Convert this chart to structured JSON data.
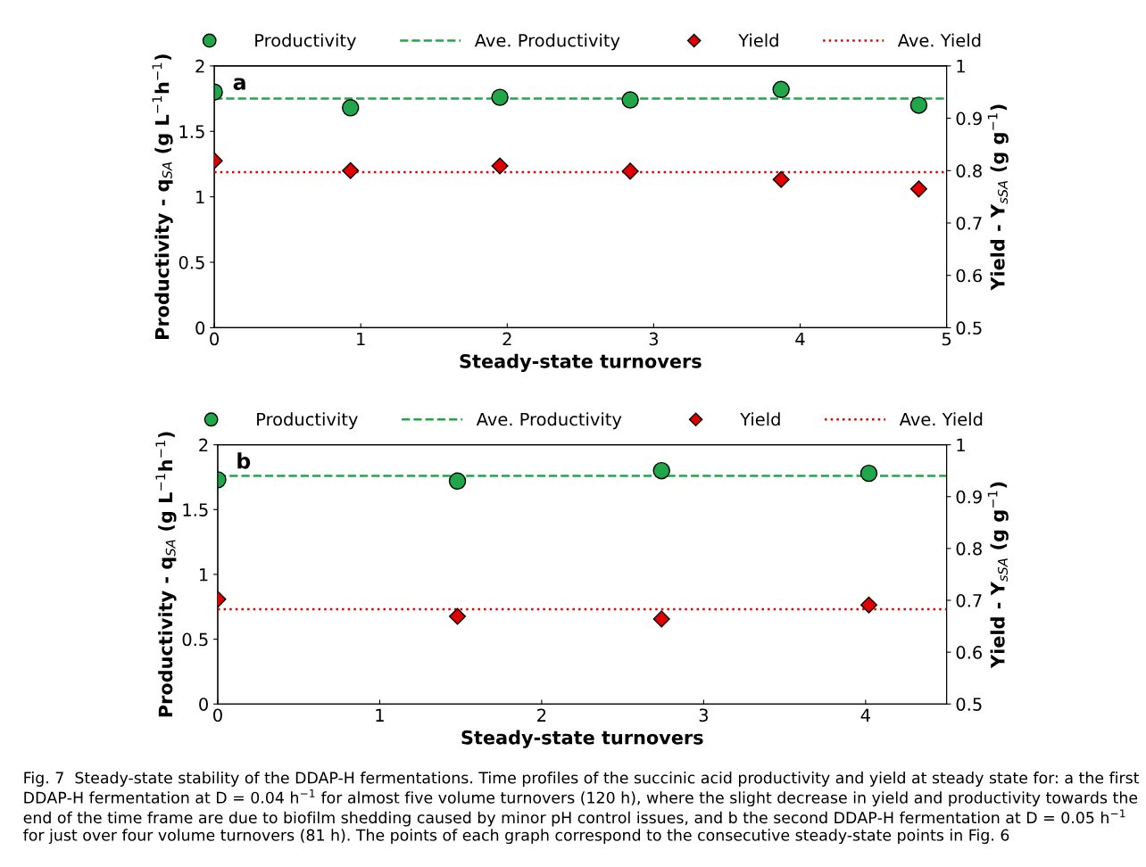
{
  "chart_data": [
    {
      "type": "scatter",
      "xlabel": "Steady-state turnovers",
      "ylabel": "Productivity - q$_{SA}$ (g L$^{−1}$h$^{−1}$)",
      "y2label": "Yield - Y$_{sSA}$ (g g$^{−1}$)",
      "xlim": [
        0,
        5
      ],
      "xticks": [
        0,
        1,
        2,
        3,
        4,
        5
      ],
      "ylim": [
        0,
        2
      ],
      "yticks": [
        0,
        0.5,
        1,
        1.5,
        2
      ],
      "y2lim": [
        0.5,
        1
      ],
      "y2ticks": [
        0.5,
        0.6,
        0.7,
        0.8,
        0.9,
        1
      ],
      "legend": "top",
      "grid": false,
      "annotations": [
        "a"
      ],
      "series": [
        {
          "name": "Productivity",
          "color": "#1fa74a",
          "marker": "circle",
          "x": [
            0,
            0.93,
            1.95,
            2.84,
            3.87,
            4.81
          ],
          "values": [
            1.8,
            1.68,
            1.76,
            1.74,
            1.82,
            1.7
          ]
        },
        {
          "name": "Yield",
          "color": "#e00000",
          "marker": "diamond",
          "axis": "y2",
          "x": [
            0,
            0.93,
            1.95,
            2.84,
            3.87,
            4.81
          ],
          "values": [
            0.819,
            0.8,
            0.809,
            0.799,
            0.783,
            0.765
          ]
        }
      ],
      "ref_lines": [
        {
          "axis": "y",
          "value": 1.75,
          "label": "Ave. Productivity",
          "color": "#1fa74a",
          "line_style": "dashed"
        },
        {
          "axis": "y2",
          "value": 0.797,
          "label": "Ave. Yield",
          "color": "#e00000",
          "line_style": "dotted"
        }
      ]
    },
    {
      "type": "scatter",
      "xlabel": "Steady-state turnovers",
      "ylabel": "Productivity - q$_{SA}$ (g L$^{−1}$h$^{−1}$)",
      "y2label": "Yield - Y$_{sSA}$ (g g$^{−1}$)",
      "xlim": [
        0,
        4.5
      ],
      "xticks": [
        0,
        1,
        2,
        3,
        4
      ],
      "ylim": [
        0,
        2
      ],
      "yticks": [
        0,
        0.5,
        1,
        1.5,
        2
      ],
      "y2lim": [
        0.5,
        1
      ],
      "y2ticks": [
        0.5,
        0.6,
        0.7,
        0.8,
        0.9,
        1
      ],
      "legend": "top",
      "grid": false,
      "annotations": [
        "b",
        "Fig. 7  Steady-state stability of the DDAP-H fermentations. Time profiles of the succinic acid productivity and yield at steady state for: a the first DDAP-H fermentation at D = 0.04 h$^{−1}$ for almost five volume turnovers (120 h), where the slight decrease in yield and productivity towards the end of the time frame are due to biofilm shedding caused by minor pH control issues, and b the second DDAP-H fermentation at D = 0.05 h$^{−1}$ for just over four volume turnovers (81 h). The points of each graph correspond to the consecutive steady-state points in Fig. 6"
      ],
      "series": [
        {
          "name": "Productivity",
          "color": "#1fa74a",
          "marker": "circle",
          "x": [
            0,
            1.48,
            2.74,
            4.02
          ],
          "values": [
            1.73,
            1.72,
            1.8,
            1.78
          ]
        },
        {
          "name": "Yield",
          "color": "#e00000",
          "marker": "diamond",
          "axis": "y2",
          "x": [
            0,
            1.48,
            2.74,
            4.02
          ],
          "values": [
            0.702,
            0.669,
            0.664,
            0.691
          ]
        }
      ],
      "ref_lines": [
        {
          "axis": "y",
          "value": 1.76,
          "label": "Ave. Productivity",
          "color": "#1fa74a",
          "line_style": "dashed"
        },
        {
          "axis": "y2",
          "value": 0.683,
          "label": "Ave. Yield",
          "color": "#e00000",
          "line_style": "dotted"
        }
      ]
    }
  ]
}
